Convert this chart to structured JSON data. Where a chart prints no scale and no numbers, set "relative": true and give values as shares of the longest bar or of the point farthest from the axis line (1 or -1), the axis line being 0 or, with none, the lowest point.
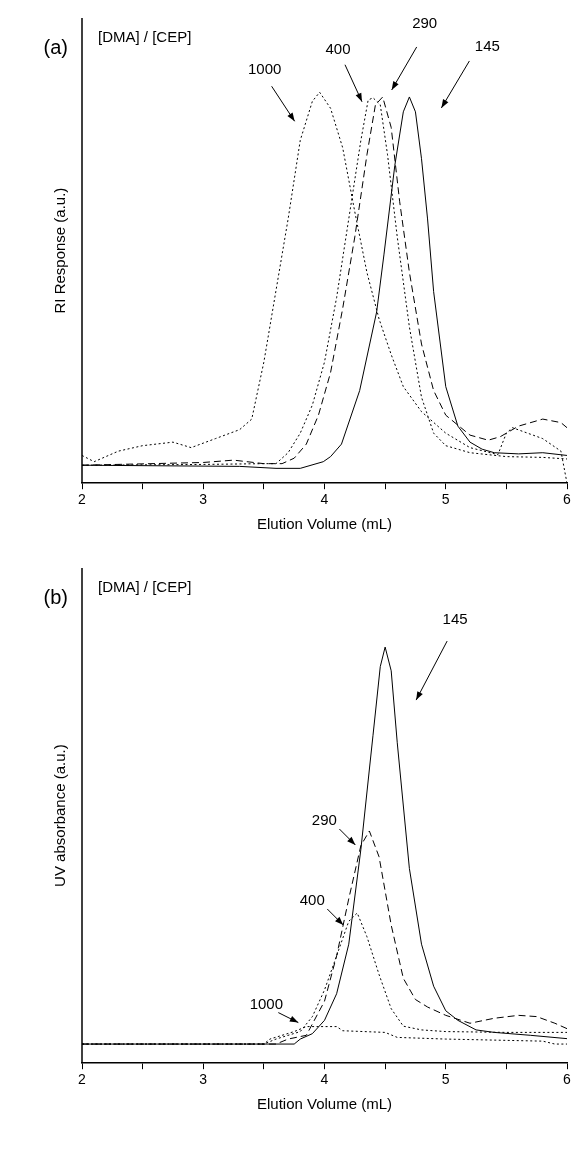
{
  "chart_data": [
    {
      "type": "line",
      "title": "(a)",
      "xlabel": "Elution Volume (mL)",
      "ylabel": "RI Response (a.u.)",
      "annotations": [
        "[DMA] / [CEP]"
      ],
      "relative": true,
      "xlim": [
        2,
        6
      ],
      "xticks": [
        2,
        {
          "value": 2.5,
          "label": null
        },
        3,
        {
          "value": 3.5,
          "label": null
        },
        4,
        {
          "value": 4.5,
          "label": null
        },
        5,
        {
          "value": 5.5,
          "label": null
        },
        6
      ],
      "grid": false,
      "legend": false,
      "marker": "none",
      "series": [
        {
          "name": "1000",
          "color": "#000000",
          "line_style": "dotted",
          "x": [
            2,
            2.1,
            2.3,
            2.5,
            2.75,
            2.9,
            3.1,
            3.3,
            3.4,
            3.5,
            3.6,
            3.7,
            3.8,
            3.9,
            3.96,
            4.05,
            4.15,
            4.25,
            4.35,
            4.45,
            4.55,
            4.65,
            4.8,
            5,
            5.2,
            5.43,
            5.5,
            5.55,
            5.8,
            5.95,
            6
          ],
          "values": [
            0.071,
            0.055,
            0.082,
            0.096,
            0.105,
            0.091,
            0.114,
            0.137,
            0.164,
            0.31,
            0.493,
            0.676,
            0.877,
            0.977,
            1,
            0.959,
            0.858,
            0.694,
            0.539,
            0.42,
            0.329,
            0.247,
            0.183,
            0.128,
            0.091,
            0.073,
            0.128,
            0.142,
            0.114,
            0.082,
            0
          ]
        },
        {
          "name": "400",
          "color": "#000000",
          "line_style": "dotted",
          "x": [
            2,
            3,
            3.5,
            3.6,
            3.7,
            3.8,
            3.9,
            4,
            4.1,
            4.2,
            4.3,
            4.36,
            4.4,
            4.46,
            4.52,
            4.6,
            4.7,
            4.8,
            4.9,
            5,
            5.2,
            5.5,
            5.8,
            6
          ],
          "values": [
            0.046,
            0.048,
            0.05,
            0.05,
            0.078,
            0.128,
            0.2,
            0.31,
            0.475,
            0.676,
            0.877,
            0.98,
            0.986,
            0.968,
            0.84,
            0.63,
            0.4,
            0.22,
            0.128,
            0.096,
            0.078,
            0.068,
            0.066,
            0.062
          ]
        },
        {
          "name": "290",
          "color": "#000000",
          "line_style": "dashed",
          "x": [
            2,
            3,
            3.25,
            3.5,
            3.65,
            3.75,
            3.85,
            3.95,
            4.05,
            4.15,
            4.25,
            4.35,
            4.42,
            4.48,
            4.55,
            4.62,
            4.7,
            4.8,
            4.9,
            5,
            5.2,
            5.35,
            5.45,
            5.6,
            5.8,
            5.95,
            6
          ],
          "values": [
            0.046,
            0.053,
            0.059,
            0.05,
            0.05,
            0.064,
            0.1,
            0.174,
            0.283,
            0.447,
            0.63,
            0.84,
            0.968,
            0.988,
            0.91,
            0.72,
            0.54,
            0.356,
            0.237,
            0.174,
            0.123,
            0.11,
            0.119,
            0.146,
            0.164,
            0.155,
            0.142
          ]
        },
        {
          "name": "145",
          "color": "#000000",
          "line_style": "solid",
          "x": [
            2,
            3.3,
            3.6,
            3.8,
            3.99,
            4.05,
            4.14,
            4.29,
            4.43,
            4.49,
            4.58,
            4.65,
            4.7,
            4.75,
            4.8,
            4.85,
            4.9,
            5,
            5.1,
            5.2,
            5.3,
            5.4,
            5.6,
            5.8,
            6
          ],
          "values": [
            0.046,
            0.043,
            0.038,
            0.038,
            0.055,
            0.068,
            0.1,
            0.237,
            0.438,
            0.584,
            0.813,
            0.95,
            0.988,
            0.95,
            0.83,
            0.676,
            0.49,
            0.247,
            0.146,
            0.105,
            0.087,
            0.078,
            0.075,
            0.078,
            0.071
          ]
        }
      ]
    },
    {
      "type": "line",
      "title": "(b)",
      "xlabel": "Elution Volume (mL)",
      "ylabel": "UV absorbance (a.u.)",
      "annotations": [
        "[DMA] / [CEP]"
      ],
      "relative": true,
      "xlim": [
        2,
        6
      ],
      "xticks": [
        2,
        {
          "value": 2.5,
          "label": null
        },
        3,
        {
          "value": 3.5,
          "label": null
        },
        4,
        {
          "value": 4.5,
          "label": null
        },
        5,
        {
          "value": 5.5,
          "label": null
        },
        6
      ],
      "grid": false,
      "legend": false,
      "marker": "none",
      "series": [
        {
          "name": "145",
          "color": "#000000",
          "line_style": "solid",
          "x": [
            2,
            3.75,
            3.8,
            3.9,
            4,
            4.1,
            4.2,
            4.3,
            4.4,
            4.46,
            4.5,
            4.55,
            4.6,
            4.7,
            4.8,
            4.9,
            5,
            5.1,
            5.25,
            5.4,
            5.7,
            6
          ],
          "values": [
            0.046,
            0.046,
            0.058,
            0.071,
            0.103,
            0.167,
            0.286,
            0.514,
            0.788,
            0.953,
            1,
            0.943,
            0.77,
            0.468,
            0.286,
            0.185,
            0.126,
            0.103,
            0.08,
            0.074,
            0.067,
            0.059
          ]
        },
        {
          "name": "290",
          "color": "#000000",
          "line_style": "dashed",
          "x": [
            2,
            3.6,
            3.7,
            3.85,
            4,
            4.1,
            4.2,
            4.3,
            4.37,
            4.45,
            4.55,
            4.65,
            4.75,
            4.85,
            5,
            5.2,
            5.4,
            5.6,
            5.75,
            5.9,
            6
          ],
          "values": [
            0.046,
            0.046,
            0.058,
            0.067,
            0.149,
            0.258,
            0.395,
            0.523,
            0.558,
            0.496,
            0.332,
            0.204,
            0.153,
            0.135,
            0.115,
            0.096,
            0.108,
            0.115,
            0.112,
            0.096,
            0.083
          ]
        },
        {
          "name": "400",
          "color": "#000000",
          "line_style": "dotted",
          "x": [
            2,
            3.5,
            3.6,
            3.8,
            3.9,
            4,
            4.1,
            4.2,
            4.27,
            4.35,
            4.45,
            4.55,
            4.65,
            4.8,
            5,
            5.5,
            6
          ],
          "values": [
            0.046,
            0.046,
            0.058,
            0.076,
            0.112,
            0.176,
            0.258,
            0.341,
            0.361,
            0.304,
            0.213,
            0.131,
            0.089,
            0.08,
            0.076,
            0.074,
            0.074
          ]
        },
        {
          "name": "1000",
          "color": "#000000",
          "line_style": "dotted",
          "x": [
            2,
            3.5,
            3.55,
            3.75,
            3.85,
            4.1,
            4.15,
            4.5,
            4.6,
            5,
            5.8,
            5.9,
            6
          ],
          "values": [
            0.046,
            0.046,
            0.058,
            0.076,
            0.088,
            0.088,
            0.078,
            0.074,
            0.062,
            0.058,
            0.053,
            0.046,
            0.046
          ]
        }
      ]
    }
  ]
}
